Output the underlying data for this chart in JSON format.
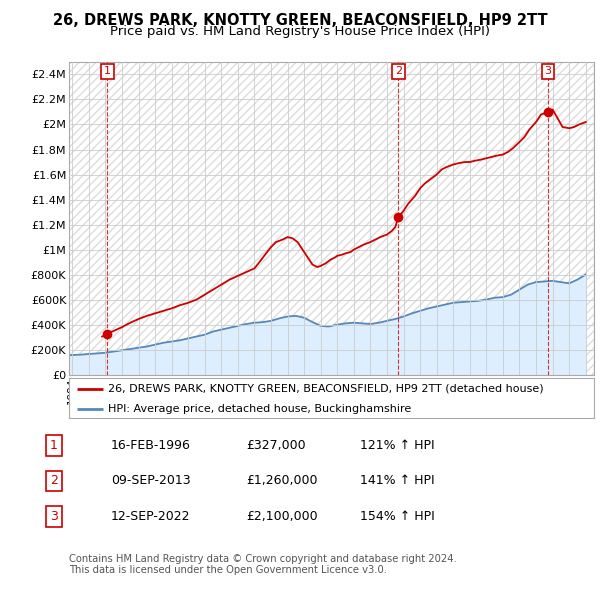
{
  "title": "26, DREWS PARK, KNOTTY GREEN, BEACONSFIELD, HP9 2TT",
  "subtitle": "Price paid vs. HM Land Registry's House Price Index (HPI)",
  "xlim_start": 1993.8,
  "xlim_end": 2025.5,
  "ylim": [
    0,
    2500000
  ],
  "yticks": [
    0,
    200000,
    400000,
    600000,
    800000,
    1000000,
    1200000,
    1400000,
    1600000,
    1800000,
    2000000,
    2200000,
    2400000
  ],
  "ytick_labels": [
    "£0",
    "£200K",
    "£400K",
    "£600K",
    "£800K",
    "£1M",
    "£1.2M",
    "£1.4M",
    "£1.6M",
    "£1.8M",
    "£2M",
    "£2.2M",
    "£2.4M"
  ],
  "sale_dates": [
    1996.12,
    2013.69,
    2022.71
  ],
  "sale_prices": [
    327000,
    1260000,
    2100000
  ],
  "sale_labels": [
    "1",
    "2",
    "3"
  ],
  "red_line_color": "#cc0000",
  "blue_line_color": "#5588bb",
  "hpi_fill_color": "#ddeeff",
  "background_color": "#ffffff",
  "hatch_color": "#e8e8e8",
  "grid_color": "#cccccc",
  "legend_entries": [
    "26, DREWS PARK, KNOTTY GREEN, BEACONSFIELD, HP9 2TT (detached house)",
    "HPI: Average price, detached house, Buckinghamshire"
  ],
  "table_rows": [
    [
      "1",
      "16-FEB-1996",
      "£327,000",
      "121% ↑ HPI"
    ],
    [
      "2",
      "09-SEP-2013",
      "£1,260,000",
      "141% ↑ HPI"
    ],
    [
      "3",
      "12-SEP-2022",
      "£2,100,000",
      "154% ↑ HPI"
    ]
  ],
  "footnote": "Contains HM Land Registry data © Crown copyright and database right 2024.\nThis data is licensed under the Open Government Licence v3.0.",
  "hpi_years": [
    1993.8,
    1994.5,
    1995.0,
    1995.5,
    1996.0,
    1996.5,
    1997.0,
    1997.5,
    1998.0,
    1998.5,
    1999.0,
    1999.5,
    2000.0,
    2000.5,
    2001.0,
    2001.5,
    2002.0,
    2002.5,
    2003.0,
    2003.5,
    2004.0,
    2004.5,
    2005.0,
    2005.5,
    2006.0,
    2006.5,
    2007.0,
    2007.5,
    2008.0,
    2008.5,
    2009.0,
    2009.5,
    2010.0,
    2010.5,
    2011.0,
    2011.5,
    2012.0,
    2012.5,
    2013.0,
    2013.5,
    2014.0,
    2014.5,
    2015.0,
    2015.5,
    2016.0,
    2016.5,
    2017.0,
    2017.5,
    2018.0,
    2018.5,
    2019.0,
    2019.5,
    2020.0,
    2020.5,
    2021.0,
    2021.5,
    2022.0,
    2022.5,
    2023.0,
    2023.5,
    2024.0,
    2024.5,
    2025.0
  ],
  "hpi_values": [
    155000,
    160000,
    165000,
    170000,
    175000,
    185000,
    195000,
    205000,
    215000,
    225000,
    240000,
    255000,
    265000,
    275000,
    290000,
    305000,
    320000,
    345000,
    360000,
    375000,
    390000,
    405000,
    415000,
    420000,
    430000,
    450000,
    465000,
    470000,
    455000,
    420000,
    390000,
    385000,
    400000,
    410000,
    415000,
    410000,
    405000,
    415000,
    430000,
    445000,
    465000,
    490000,
    510000,
    530000,
    545000,
    560000,
    575000,
    580000,
    585000,
    590000,
    600000,
    615000,
    620000,
    640000,
    680000,
    720000,
    740000,
    745000,
    750000,
    740000,
    730000,
    760000,
    800000
  ],
  "red_years": [
    1995.8,
    1996.0,
    1996.12,
    1996.5,
    1997.0,
    1997.5,
    1998.0,
    1998.5,
    1999.0,
    1999.5,
    2000.0,
    2000.5,
    2001.0,
    2001.5,
    2002.0,
    2002.5,
    2003.0,
    2003.5,
    2004.0,
    2004.5,
    2005.0,
    2005.3,
    2005.7,
    2006.0,
    2006.3,
    2006.7,
    2007.0,
    2007.3,
    2007.6,
    2007.9,
    2008.2,
    2008.5,
    2008.8,
    2009.0,
    2009.3,
    2009.6,
    2009.9,
    2010.0,
    2010.3,
    2010.5,
    2010.8,
    2011.0,
    2011.3,
    2011.6,
    2012.0,
    2012.3,
    2012.6,
    2013.0,
    2013.3,
    2013.5,
    2013.69,
    2014.0,
    2014.3,
    2014.7,
    2015.0,
    2015.3,
    2015.6,
    2016.0,
    2016.3,
    2016.6,
    2017.0,
    2017.3,
    2017.7,
    2018.0,
    2018.3,
    2018.7,
    2019.0,
    2019.3,
    2019.6,
    2020.0,
    2020.3,
    2020.6,
    2021.0,
    2021.3,
    2021.6,
    2022.0,
    2022.3,
    2022.71,
    2023.0,
    2023.3,
    2023.6,
    2024.0,
    2024.3,
    2024.6,
    2025.0
  ],
  "red_values": [
    305000,
    315000,
    327000,
    350000,
    380000,
    415000,
    445000,
    470000,
    490000,
    510000,
    530000,
    555000,
    575000,
    600000,
    640000,
    680000,
    720000,
    760000,
    790000,
    820000,
    850000,
    900000,
    970000,
    1020000,
    1060000,
    1080000,
    1100000,
    1090000,
    1060000,
    1000000,
    940000,
    880000,
    860000,
    870000,
    890000,
    920000,
    940000,
    950000,
    960000,
    970000,
    980000,
    1000000,
    1020000,
    1040000,
    1060000,
    1080000,
    1100000,
    1120000,
    1150000,
    1180000,
    1260000,
    1310000,
    1370000,
    1430000,
    1490000,
    1530000,
    1560000,
    1600000,
    1640000,
    1660000,
    1680000,
    1690000,
    1700000,
    1700000,
    1710000,
    1720000,
    1730000,
    1740000,
    1750000,
    1760000,
    1780000,
    1810000,
    1860000,
    1900000,
    1960000,
    2020000,
    2080000,
    2100000,
    2120000,
    2050000,
    1980000,
    1970000,
    1980000,
    2000000,
    2020000
  ]
}
